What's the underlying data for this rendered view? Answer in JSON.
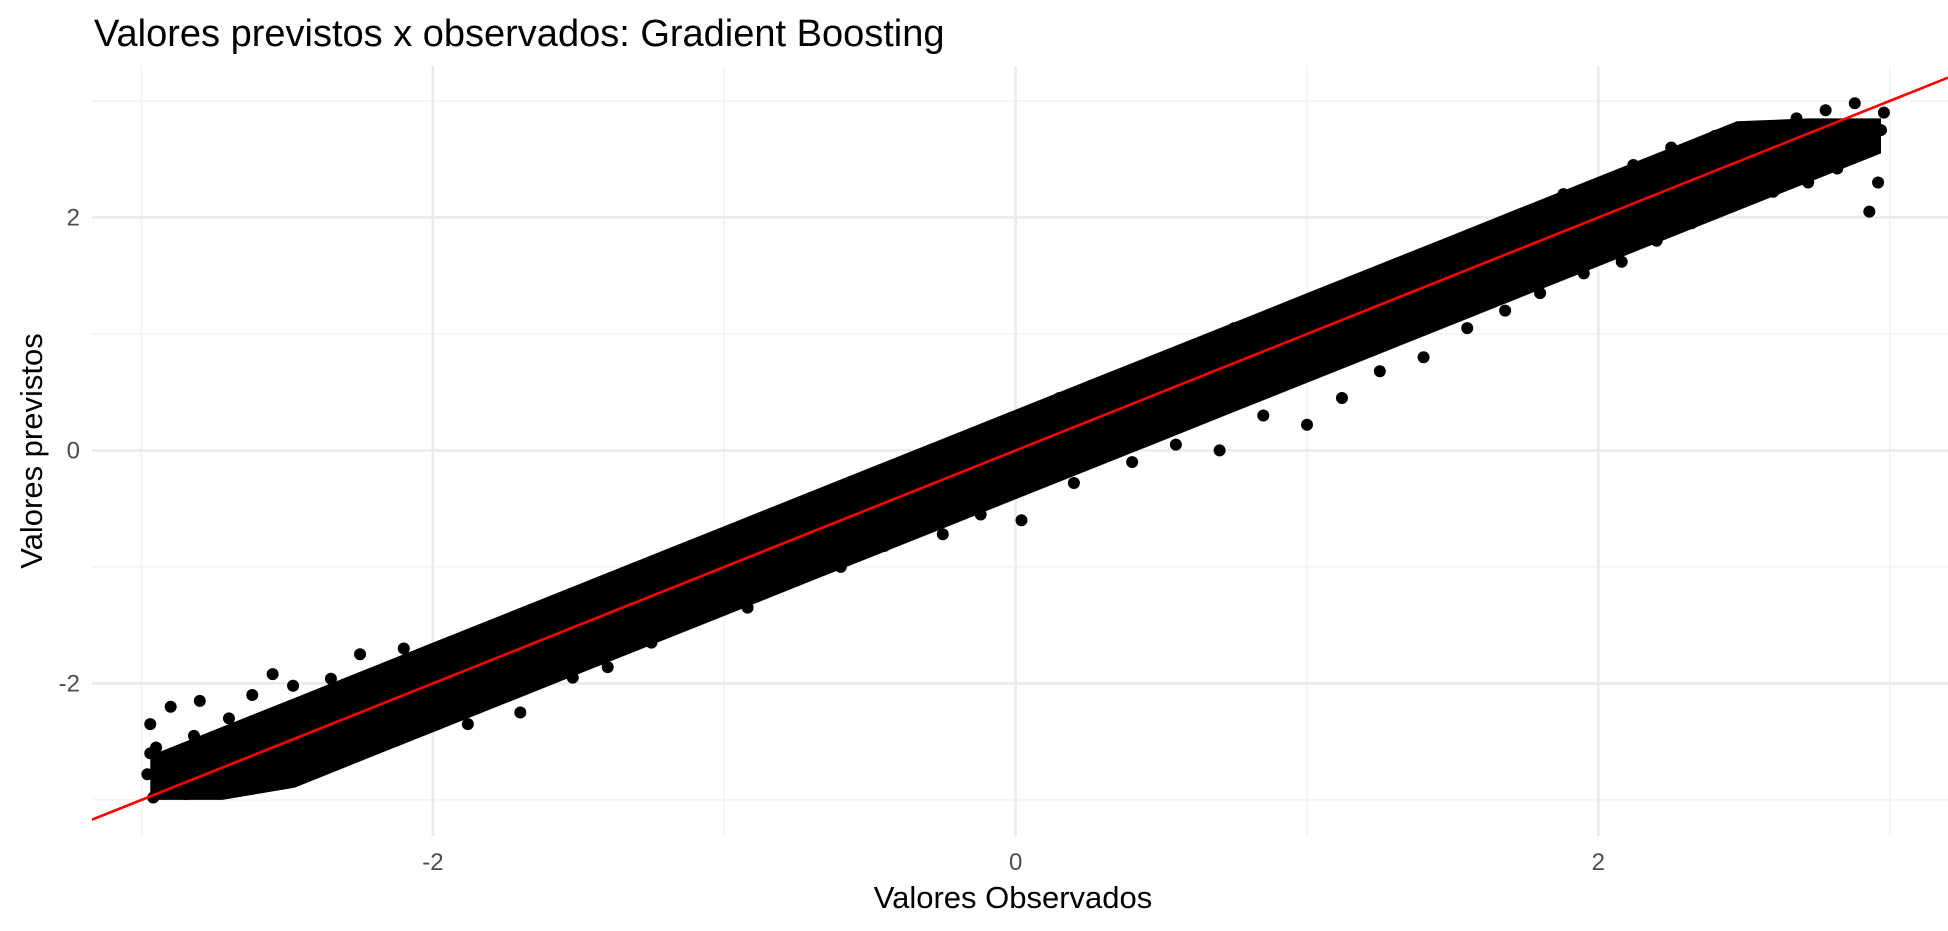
{
  "chart_data": {
    "type": "scatter",
    "title": "Valores previstos x observados: Gradient Boosting",
    "xlabel": "Valores Observados",
    "ylabel": "Valores previstos",
    "xlim": [
      -3.17,
      3.2
    ],
    "ylim": [
      -3.31,
      3.3
    ],
    "x_ticks": [
      -2,
      0,
      2
    ],
    "y_ticks": [
      -2,
      0,
      2
    ],
    "x_tick_labels": [
      "-2",
      "0",
      "2"
    ],
    "y_tick_labels": [
      "-2",
      "0",
      "2"
    ],
    "x_minor_ticks": [
      -3,
      -1,
      1,
      3
    ],
    "y_minor_ticks": [
      -3,
      -1,
      1,
      3
    ],
    "grid": true,
    "legend": "none",
    "point_color": "#000000",
    "series": [
      {
        "points": [
          [
            -2.98,
            -2.78
          ],
          [
            -2.97,
            -2.6
          ],
          [
            -2.97,
            -2.35
          ],
          [
            -2.96,
            -2.98
          ],
          [
            -2.95,
            -2.55
          ],
          [
            -2.93,
            -2.9
          ],
          [
            -2.9,
            -2.2
          ],
          [
            -2.88,
            -2.7
          ],
          [
            -2.85,
            -2.95
          ],
          [
            -2.82,
            -2.45
          ],
          [
            -2.8,
            -2.15
          ],
          [
            -2.75,
            -2.88
          ],
          [
            -2.7,
            -2.3
          ],
          [
            -2.68,
            -2.62
          ],
          [
            -2.62,
            -2.1
          ],
          [
            -2.6,
            -2.55
          ],
          [
            -2.55,
            -1.92
          ],
          [
            -2.5,
            -2.48
          ],
          [
            -2.48,
            -2.02
          ],
          [
            -2.42,
            -2.7
          ],
          [
            -2.35,
            -1.96
          ],
          [
            -2.25,
            -1.75
          ],
          [
            -2.2,
            -2.15
          ],
          [
            -2.15,
            -2.5
          ],
          [
            -2.1,
            -1.7
          ],
          [
            -2.0,
            -2.1
          ],
          [
            -1.95,
            -1.75
          ],
          [
            -1.88,
            -2.35
          ],
          [
            -1.8,
            -1.85
          ],
          [
            -1.75,
            -1.55
          ],
          [
            -1.7,
            -2.25
          ],
          [
            -1.6,
            -1.5
          ],
          [
            -1.52,
            -1.95
          ],
          [
            -1.45,
            -1.3
          ],
          [
            -1.4,
            -1.86
          ],
          [
            -1.3,
            -1.28
          ],
          [
            -1.25,
            -1.65
          ],
          [
            -1.15,
            -1.05
          ],
          [
            -1.05,
            -1.4
          ],
          [
            -1.0,
            -0.95
          ],
          [
            -0.92,
            -1.35
          ],
          [
            -0.85,
            -0.75
          ],
          [
            -0.78,
            -1.05
          ],
          [
            -0.7,
            -0.55
          ],
          [
            -0.6,
            -1.0
          ],
          [
            -0.5,
            -0.42
          ],
          [
            -0.45,
            -0.82
          ],
          [
            -0.35,
            -0.28
          ],
          [
            -0.25,
            -0.72
          ],
          [
            -0.2,
            -0.12
          ],
          [
            -0.12,
            -0.55
          ],
          [
            -0.05,
            0.2
          ],
          [
            0.02,
            -0.6
          ],
          [
            0.08,
            -0.2
          ],
          [
            0.15,
            0.45
          ],
          [
            0.2,
            -0.28
          ],
          [
            0.3,
            0.58
          ],
          [
            0.4,
            -0.1
          ],
          [
            0.45,
            0.72
          ],
          [
            0.55,
            0.05
          ],
          [
            0.62,
            0.88
          ],
          [
            0.7,
            0.0
          ],
          [
            0.75,
            1.05
          ],
          [
            0.85,
            0.3
          ],
          [
            0.92,
            0.9
          ],
          [
            1.0,
            0.22
          ],
          [
            1.05,
            1.28
          ],
          [
            1.12,
            0.45
          ],
          [
            1.2,
            1.2
          ],
          [
            1.25,
            0.68
          ],
          [
            1.3,
            1.52
          ],
          [
            1.4,
            0.8
          ],
          [
            1.45,
            1.65
          ],
          [
            1.55,
            1.05
          ],
          [
            1.6,
            1.75
          ],
          [
            1.68,
            1.2
          ],
          [
            1.75,
            1.95
          ],
          [
            1.8,
            1.35
          ],
          [
            1.88,
            2.2
          ],
          [
            1.95,
            1.52
          ],
          [
            2.0,
            2.28
          ],
          [
            2.08,
            1.62
          ],
          [
            2.12,
            2.45
          ],
          [
            2.2,
            1.8
          ],
          [
            2.25,
            2.6
          ],
          [
            2.32,
            1.95
          ],
          [
            2.4,
            2.7
          ],
          [
            2.45,
            2.12
          ],
          [
            2.55,
            2.78
          ],
          [
            2.6,
            2.22
          ],
          [
            2.68,
            2.85
          ],
          [
            2.72,
            2.3
          ],
          [
            2.78,
            2.92
          ],
          [
            2.82,
            2.42
          ],
          [
            2.88,
            2.98
          ],
          [
            2.9,
            2.6
          ],
          [
            2.93,
            2.05
          ],
          [
            2.96,
            2.3
          ],
          [
            2.97,
            2.75
          ],
          [
            2.98,
            2.9
          ]
        ]
      }
    ],
    "reference_line": {
      "type": "y=x",
      "color": "#ff0000"
    }
  }
}
